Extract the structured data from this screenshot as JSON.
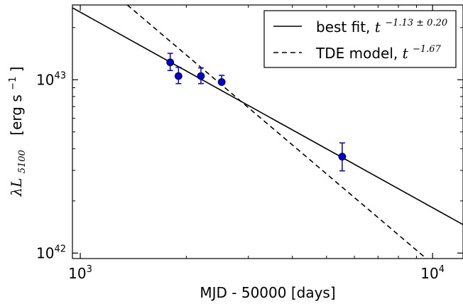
{
  "chart_data": {
    "type": "scatter",
    "xlabel": "MJD - 50000 [days]",
    "ylabel_unit": "[erg s",
    "ylabel_unit_sup": "−1",
    "ylabel_unit_end": "]",
    "ylabel_symbol": "λL",
    "ylabel_symbol_sub": "5100",
    "x_scale": "log",
    "y_scale": "log",
    "xlim": [
      950,
      12200
    ],
    "ylim": [
      9.3e+41,
      2.7e+43
    ],
    "x_ticks": [
      {
        "value": 1000,
        "base": "10",
        "exp": "3"
      },
      {
        "value": 10000,
        "base": "10",
        "exp": "4"
      }
    ],
    "y_ticks": [
      {
        "value": 1e+42,
        "base": "10",
        "exp": "42"
      },
      {
        "value": 1e+43,
        "base": "10",
        "exp": "43"
      }
    ],
    "grid": false,
    "legend_position": "top-right",
    "points": {
      "color": "#0000cc",
      "x": [
        1800,
        1900,
        2200,
        2520,
        5540
      ],
      "y": [
        1.26e+43,
        1.05e+43,
        1.05e+43,
        9.7e+42,
        3.6e+42
      ],
      "y_err_low": [
        1.3e+42,
        1e+42,
        1e+42,
        9e+40,
        6.2e+41
      ],
      "y_err_high": [
        1.6e+42,
        1.3e+42,
        1.2e+42,
        9e+41,
        7.2e+41
      ]
    },
    "series": [
      {
        "name": "best fit, ",
        "formula_base": "t",
        "formula_exp": "−1.13 ± 0.20",
        "style": "solid",
        "color": "#000000",
        "x": [
          950,
          12200
        ],
        "y": [
          2.6e+43,
          1.46e+42
        ]
      },
      {
        "name": "TDE model, ",
        "formula_base": "t",
        "formula_exp": "−1.67",
        "style": "dashed",
        "color": "#000000",
        "x": [
          1360,
          9600
        ],
        "y": [
          2.7e+43,
          9.3e+41
        ]
      }
    ]
  }
}
